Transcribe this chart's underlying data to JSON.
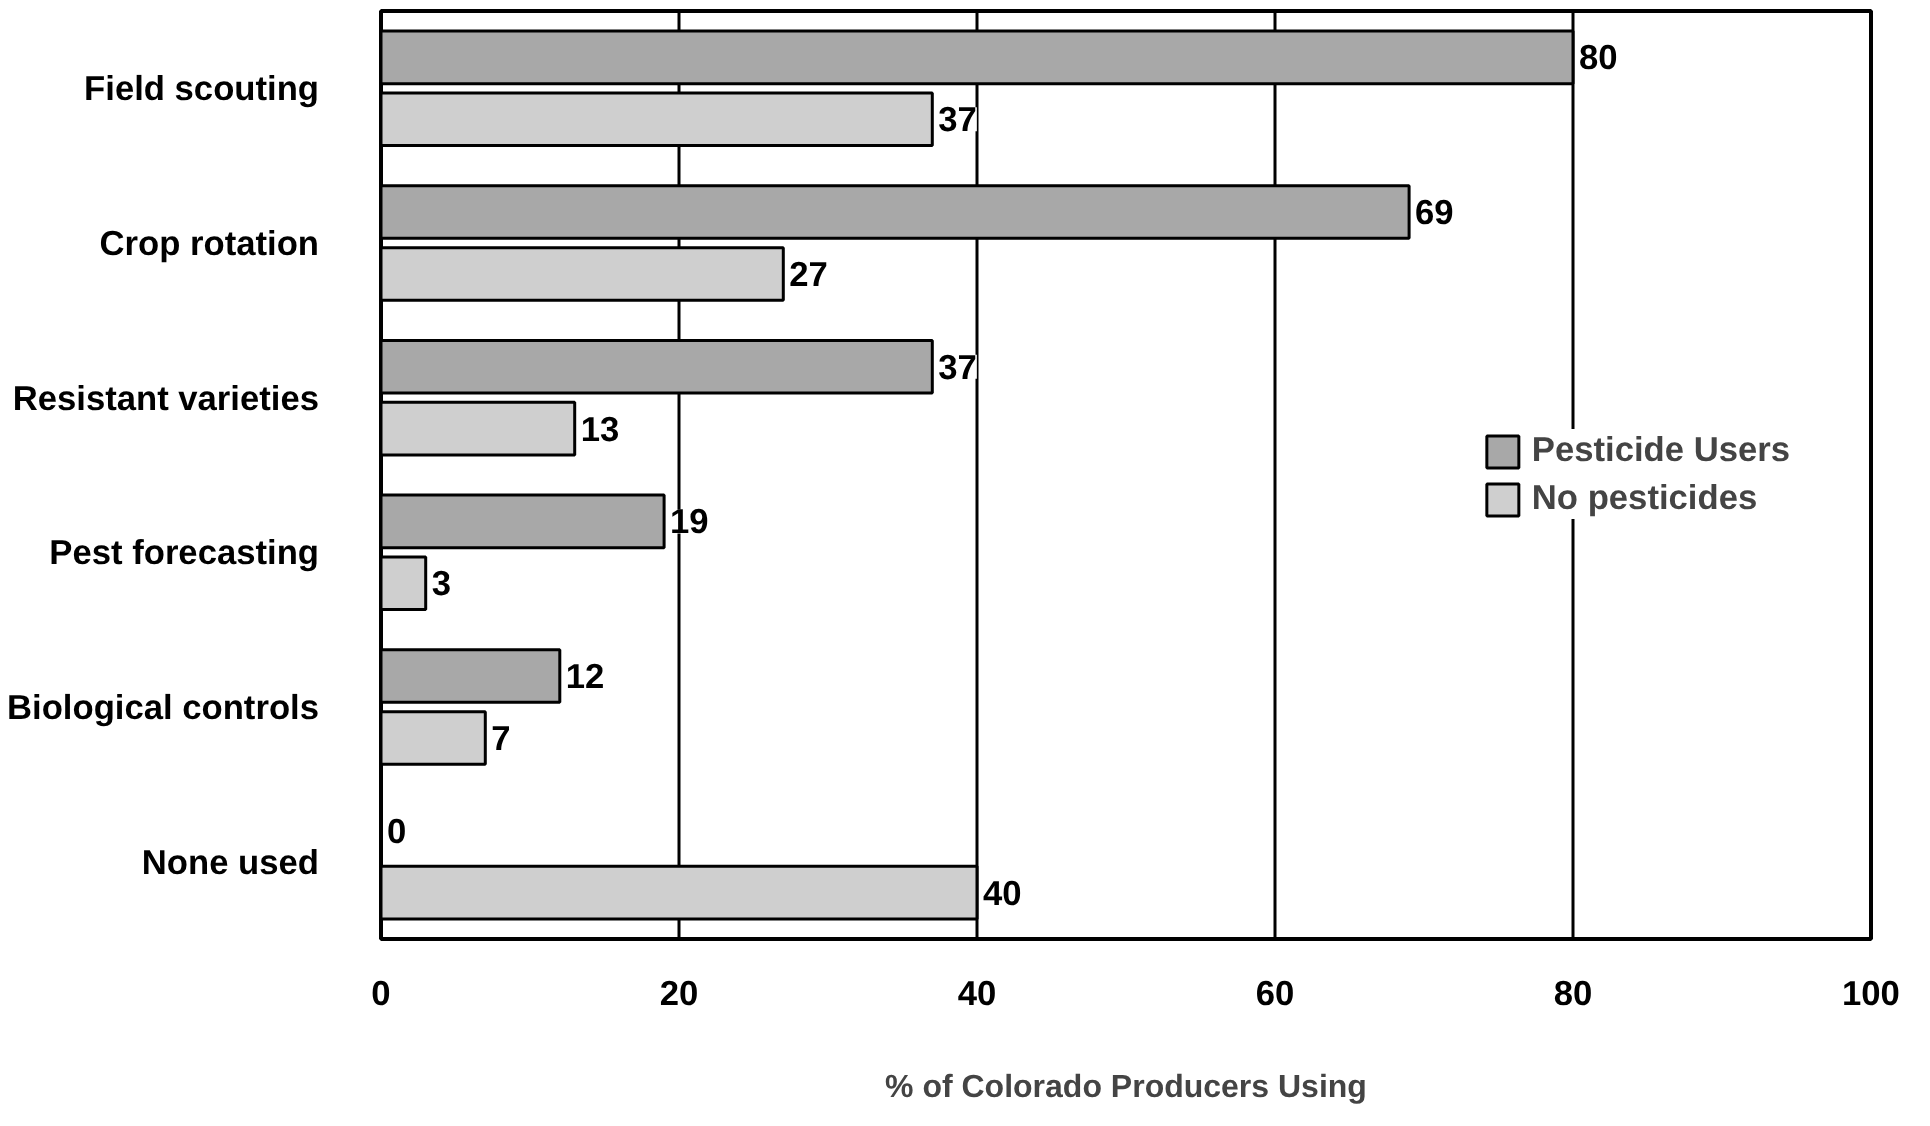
{
  "chart_data": {
    "type": "bar",
    "orientation": "horizontal",
    "xlabel": "% of Colorado Producers Using",
    "categories": [
      "Field scouting",
      "Crop rotation",
      "Resistant varieties",
      "Pest forecasting",
      "Biological controls",
      "None used"
    ],
    "series": [
      {
        "name": "Pesticide Users",
        "color": "#a8a8a8",
        "values": [
          80,
          69,
          37,
          19,
          12,
          0
        ]
      },
      {
        "name": "No pesticides",
        "color": "#cfcfcf",
        "values": [
          37,
          27,
          13,
          3,
          7,
          40
        ]
      }
    ],
    "xlim": [
      0,
      100
    ],
    "xticks": [
      0,
      20,
      40,
      60,
      80,
      100
    ],
    "grid": "x",
    "legend": "right",
    "data_labels": true
  }
}
